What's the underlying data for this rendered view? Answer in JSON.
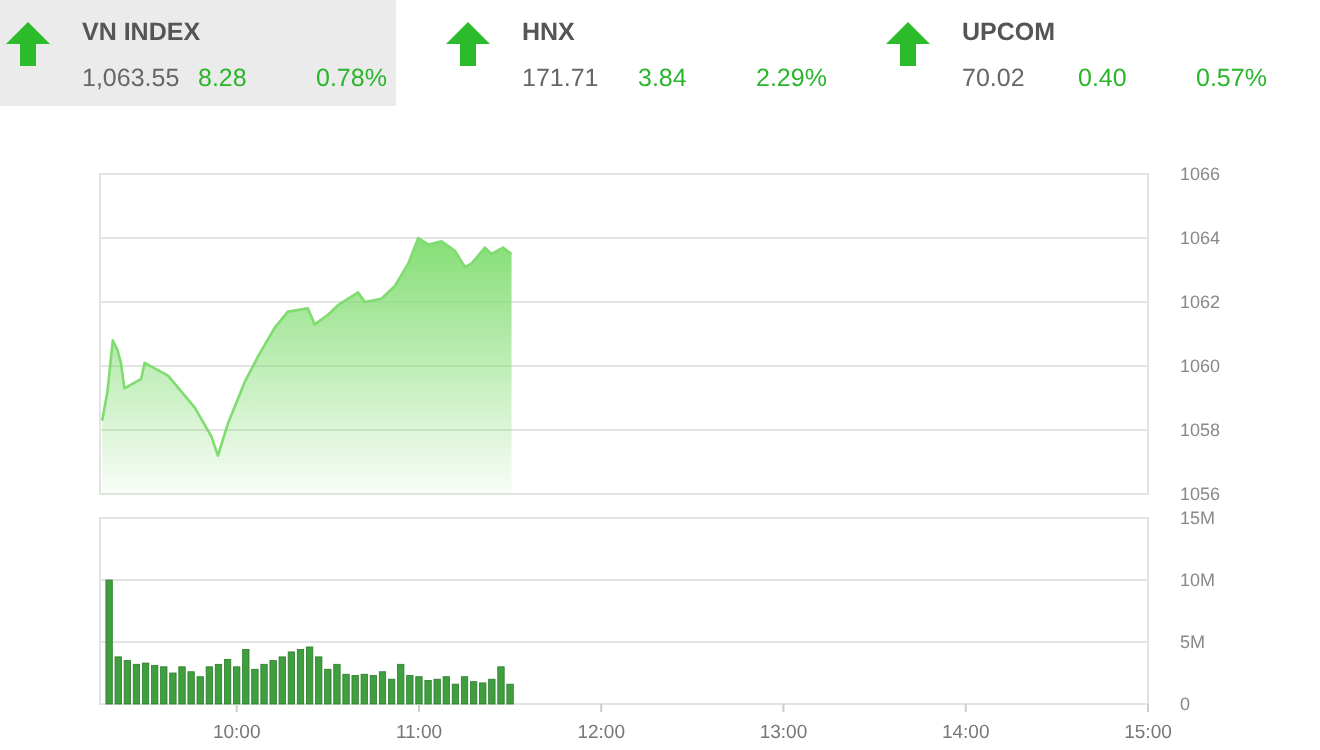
{
  "chart_data": [
    {
      "type": "other",
      "annotations": [
        "VN INDEX",
        "1,063.55",
        "8.28",
        "0.78%",
        "HNX",
        "171.71",
        "3.84",
        "2.29%",
        "UPCOM",
        "70.02",
        "0.40",
        "0.57%"
      ]
    },
    {
      "type": "area",
      "x": [
        9.262,
        9.291,
        9.32,
        9.346,
        9.365,
        9.384,
        9.476,
        9.495,
        9.623,
        9.697,
        9.77,
        9.861,
        9.897,
        9.952,
        10.044,
        10.117,
        10.209,
        10.281,
        10.391,
        10.428,
        10.501,
        10.556,
        10.666,
        10.703,
        10.794,
        10.868,
        10.941,
        10.996,
        11.051,
        11.124,
        11.197,
        11.252,
        11.288,
        11.362,
        11.398,
        11.461,
        11.508
      ],
      "values": [
        1058.3,
        1059.2,
        1060.8,
        1060.5,
        1060.1,
        1059.3,
        1059.6,
        1060.1,
        1059.7,
        1059.2,
        1058.7,
        1057.8,
        1057.2,
        1058.2,
        1059.5,
        1060.3,
        1061.2,
        1061.7,
        1061.8,
        1061.3,
        1061.6,
        1061.9,
        1062.3,
        1062.0,
        1062.1,
        1062.5,
        1063.2,
        1064.0,
        1063.8,
        1063.9,
        1063.6,
        1063.1,
        1063.2,
        1063.7,
        1063.5,
        1063.7,
        1063.5
      ],
      "color": "#7fdc6f",
      "xlim": [
        9.25,
        15
      ],
      "ylim": [
        1056,
        1066
      ],
      "yticks": [
        1056,
        1058,
        1060,
        1062,
        1064,
        1066
      ],
      "grid": "y",
      "tick_labels": "y"
    },
    {
      "type": "bar",
      "x": [
        9.3,
        9.35,
        9.4,
        9.45,
        9.5,
        9.55,
        9.6,
        9.65,
        9.7,
        9.75,
        9.8,
        9.85,
        9.9,
        9.95,
        10,
        10.05,
        10.1,
        10.15,
        10.2,
        10.25,
        10.3,
        10.35,
        10.4,
        10.45,
        10.5,
        10.55,
        10.6,
        10.65,
        10.7,
        10.75,
        10.8,
        10.85,
        10.9,
        10.95,
        11,
        11.05,
        11.1,
        11.15,
        11.2,
        11.25,
        11.3,
        11.35,
        11.4,
        11.45,
        11.5
      ],
      "values": [
        10.0,
        3.8,
        3.5,
        3.2,
        3.3,
        3.1,
        3.0,
        2.5,
        3.0,
        2.6,
        2.2,
        3.0,
        3.2,
        3.6,
        3.0,
        4.4,
        2.8,
        3.2,
        3.5,
        3.8,
        4.2,
        4.4,
        4.6,
        3.8,
        2.8,
        3.2,
        2.4,
        2.3,
        2.4,
        2.3,
        2.6,
        2.0,
        3.2,
        2.3,
        2.2,
        1.9,
        2.0,
        2.2,
        1.6,
        2.2,
        1.8,
        1.7,
        2.0,
        3.0,
        1.6
      ],
      "color": "#3f9f3f",
      "xlim": [
        9.25,
        15
      ],
      "xticks": [
        {
          "value": 10,
          "label": "10:00"
        },
        {
          "value": 11,
          "label": "11:00"
        },
        {
          "value": 12,
          "label": "12:00"
        },
        {
          "value": 13,
          "label": "13:00"
        },
        {
          "value": 14,
          "label": "14:00"
        },
        {
          "value": 15,
          "label": "15:00"
        }
      ],
      "ylim": [
        0,
        15
      ],
      "yticks": [
        0,
        {
          "value": 5,
          "label": "5M"
        },
        {
          "value": 10,
          "label": "10M"
        },
        {
          "value": 15,
          "label": "15M"
        }
      ],
      "grid": "y"
    }
  ]
}
